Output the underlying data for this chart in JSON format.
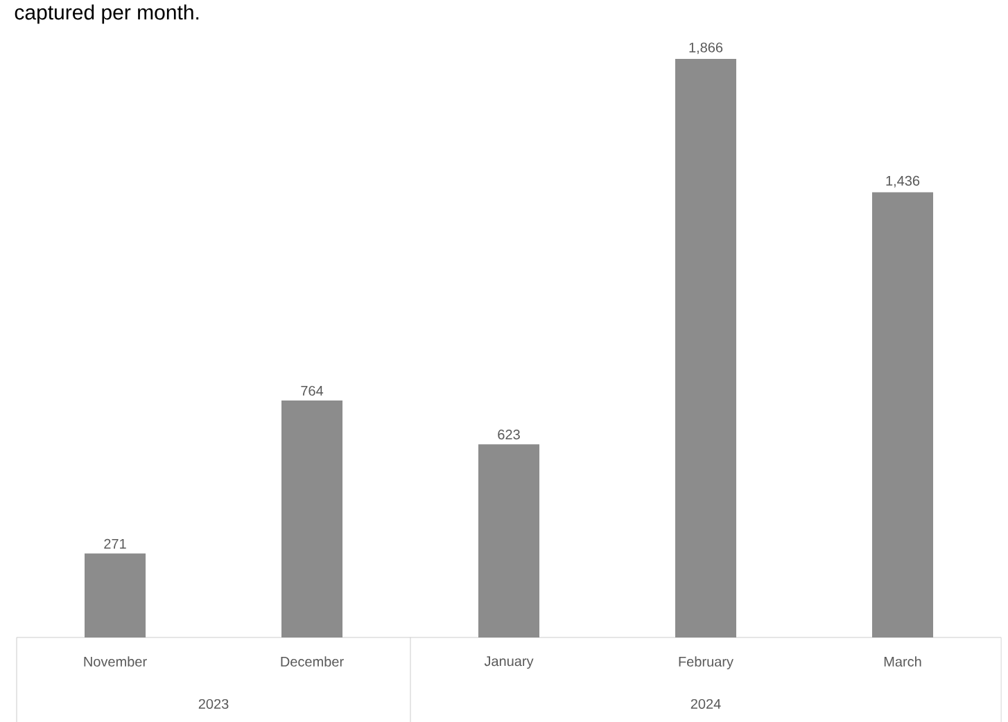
{
  "chart_data": {
    "type": "bar",
    "title": "captured per month.",
    "categories": [
      "November",
      "December",
      "January",
      "February",
      "March"
    ],
    "values": [
      271,
      764,
      623,
      1866,
      1436
    ],
    "value_labels": [
      "271",
      "764",
      "623",
      "1,866",
      "1,436"
    ],
    "color": "#8c8c8c",
    "annotations": [
      "2023",
      "2024"
    ]
  }
}
